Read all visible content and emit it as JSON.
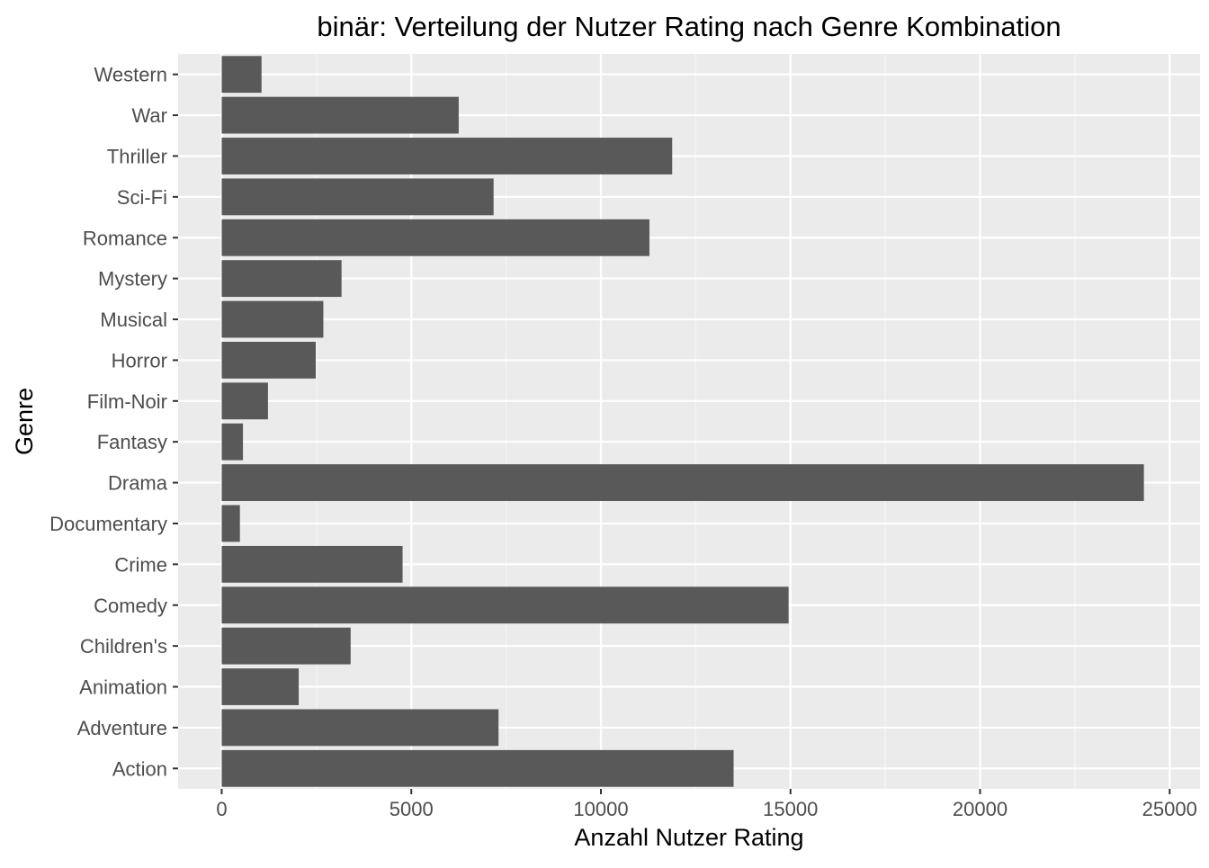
{
  "chart_data": {
    "type": "bar",
    "orientation": "horizontal",
    "title": "binär: Verteilung der Nutzer Rating nach Genre Kombination",
    "xlabel": "Anzahl Nutzer Rating",
    "ylabel": "Genre",
    "categories": [
      "Action",
      "Adventure",
      "Animation",
      "Children's",
      "Comedy",
      "Crime",
      "Documentary",
      "Drama",
      "Fantasy",
      "Film-Noir",
      "Horror",
      "Musical",
      "Mystery",
      "Romance",
      "Sci-Fi",
      "Thriller",
      "War",
      "Western"
    ],
    "values": [
      13500,
      7300,
      2030,
      3400,
      14950,
      4770,
      480,
      24320,
      560,
      1220,
      2480,
      2680,
      3160,
      11280,
      7170,
      11880,
      6250,
      1050
    ],
    "xlim": [
      -1150,
      25800
    ],
    "xticks": [
      0,
      5000,
      10000,
      15000,
      20000,
      25000
    ],
    "xtick_labels": [
      "0",
      "5000",
      "10000",
      "15000",
      "20000",
      "25000"
    ],
    "grid": true,
    "legend": "none",
    "colors": {
      "bar": "#595959",
      "panel_background": "#ebebeb",
      "grid_major": "#ffffff",
      "grid_minor": "#f5f5f5",
      "tick_text": "#4d4d4d",
      "tick_mark": "#333333"
    }
  }
}
